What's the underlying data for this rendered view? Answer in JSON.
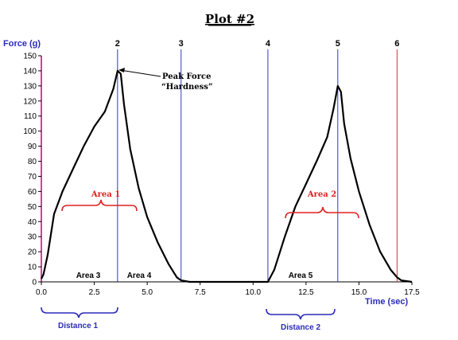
{
  "chart_data": {
    "type": "line",
    "title": "Plot #2",
    "ylabel": "Force (g)",
    "xlabel": "Time (sec)",
    "xlim": [
      0,
      17.5
    ],
    "ylim": [
      0,
      150
    ],
    "x_ticks": [
      "0.0",
      "2.5",
      "5.0",
      "7.5",
      "10.0",
      "12.5",
      "15.0",
      "17.5"
    ],
    "y_ticks": [
      "0",
      "10",
      "20",
      "30",
      "40",
      "50",
      "60",
      "70",
      "80",
      "90",
      "100",
      "110",
      "120",
      "130",
      "140",
      "150"
    ],
    "grid": false,
    "series": [
      {
        "name": "",
        "x": [
          0,
          0.1,
          0.3,
          0.6,
          1.0,
          1.5,
          2.0,
          2.5,
          3.0,
          3.4,
          3.6,
          3.75,
          3.9,
          4.2,
          4.6,
          5.0,
          5.5,
          6.0,
          6.4,
          6.6,
          7.0,
          8.0,
          9.0,
          10.0,
          10.7,
          11.0,
          11.5,
          12.0,
          12.5,
          13.0,
          13.5,
          13.8,
          14.0,
          14.15,
          14.3,
          14.6,
          15.0,
          15.5,
          16.0,
          16.5,
          16.8,
          17.0,
          17.5
        ],
        "y": [
          2,
          5,
          18,
          45,
          60,
          75,
          90,
          103,
          113,
          128,
          140,
          138,
          118,
          88,
          62,
          43,
          26,
          12,
          3,
          1,
          0,
          0,
          0,
          0,
          0,
          8,
          30,
          50,
          65,
          80,
          96,
          115,
          130,
          126,
          105,
          82,
          60,
          38,
          20,
          8,
          3,
          1,
          0
        ]
      }
    ],
    "markers": [
      {
        "label": "2",
        "x": 3.6,
        "color": "#3333cc"
      },
      {
        "label": "3",
        "x": 6.6,
        "color": "#3333cc"
      },
      {
        "label": "4",
        "x": 10.7,
        "color": "#3333cc"
      },
      {
        "label": "5",
        "x": 14.0,
        "color": "#3333cc"
      },
      {
        "label": "6",
        "x": 16.8,
        "color": "#cc3344"
      }
    ],
    "annotations": {
      "peak_force_line1": "Peak Force",
      "peak_force_line2": "“Hardness”",
      "area1": "Area 1",
      "area2": "Area 2",
      "area3": "Area 3",
      "area4": "Area 4",
      "area5": "Area 5",
      "distance1": "Distance 1",
      "distance2": "Distance 2"
    },
    "colors": {
      "curve": "#000000",
      "axis_y": "#cc0066",
      "blue": "#2b2bb8",
      "red": "#e02020"
    }
  }
}
